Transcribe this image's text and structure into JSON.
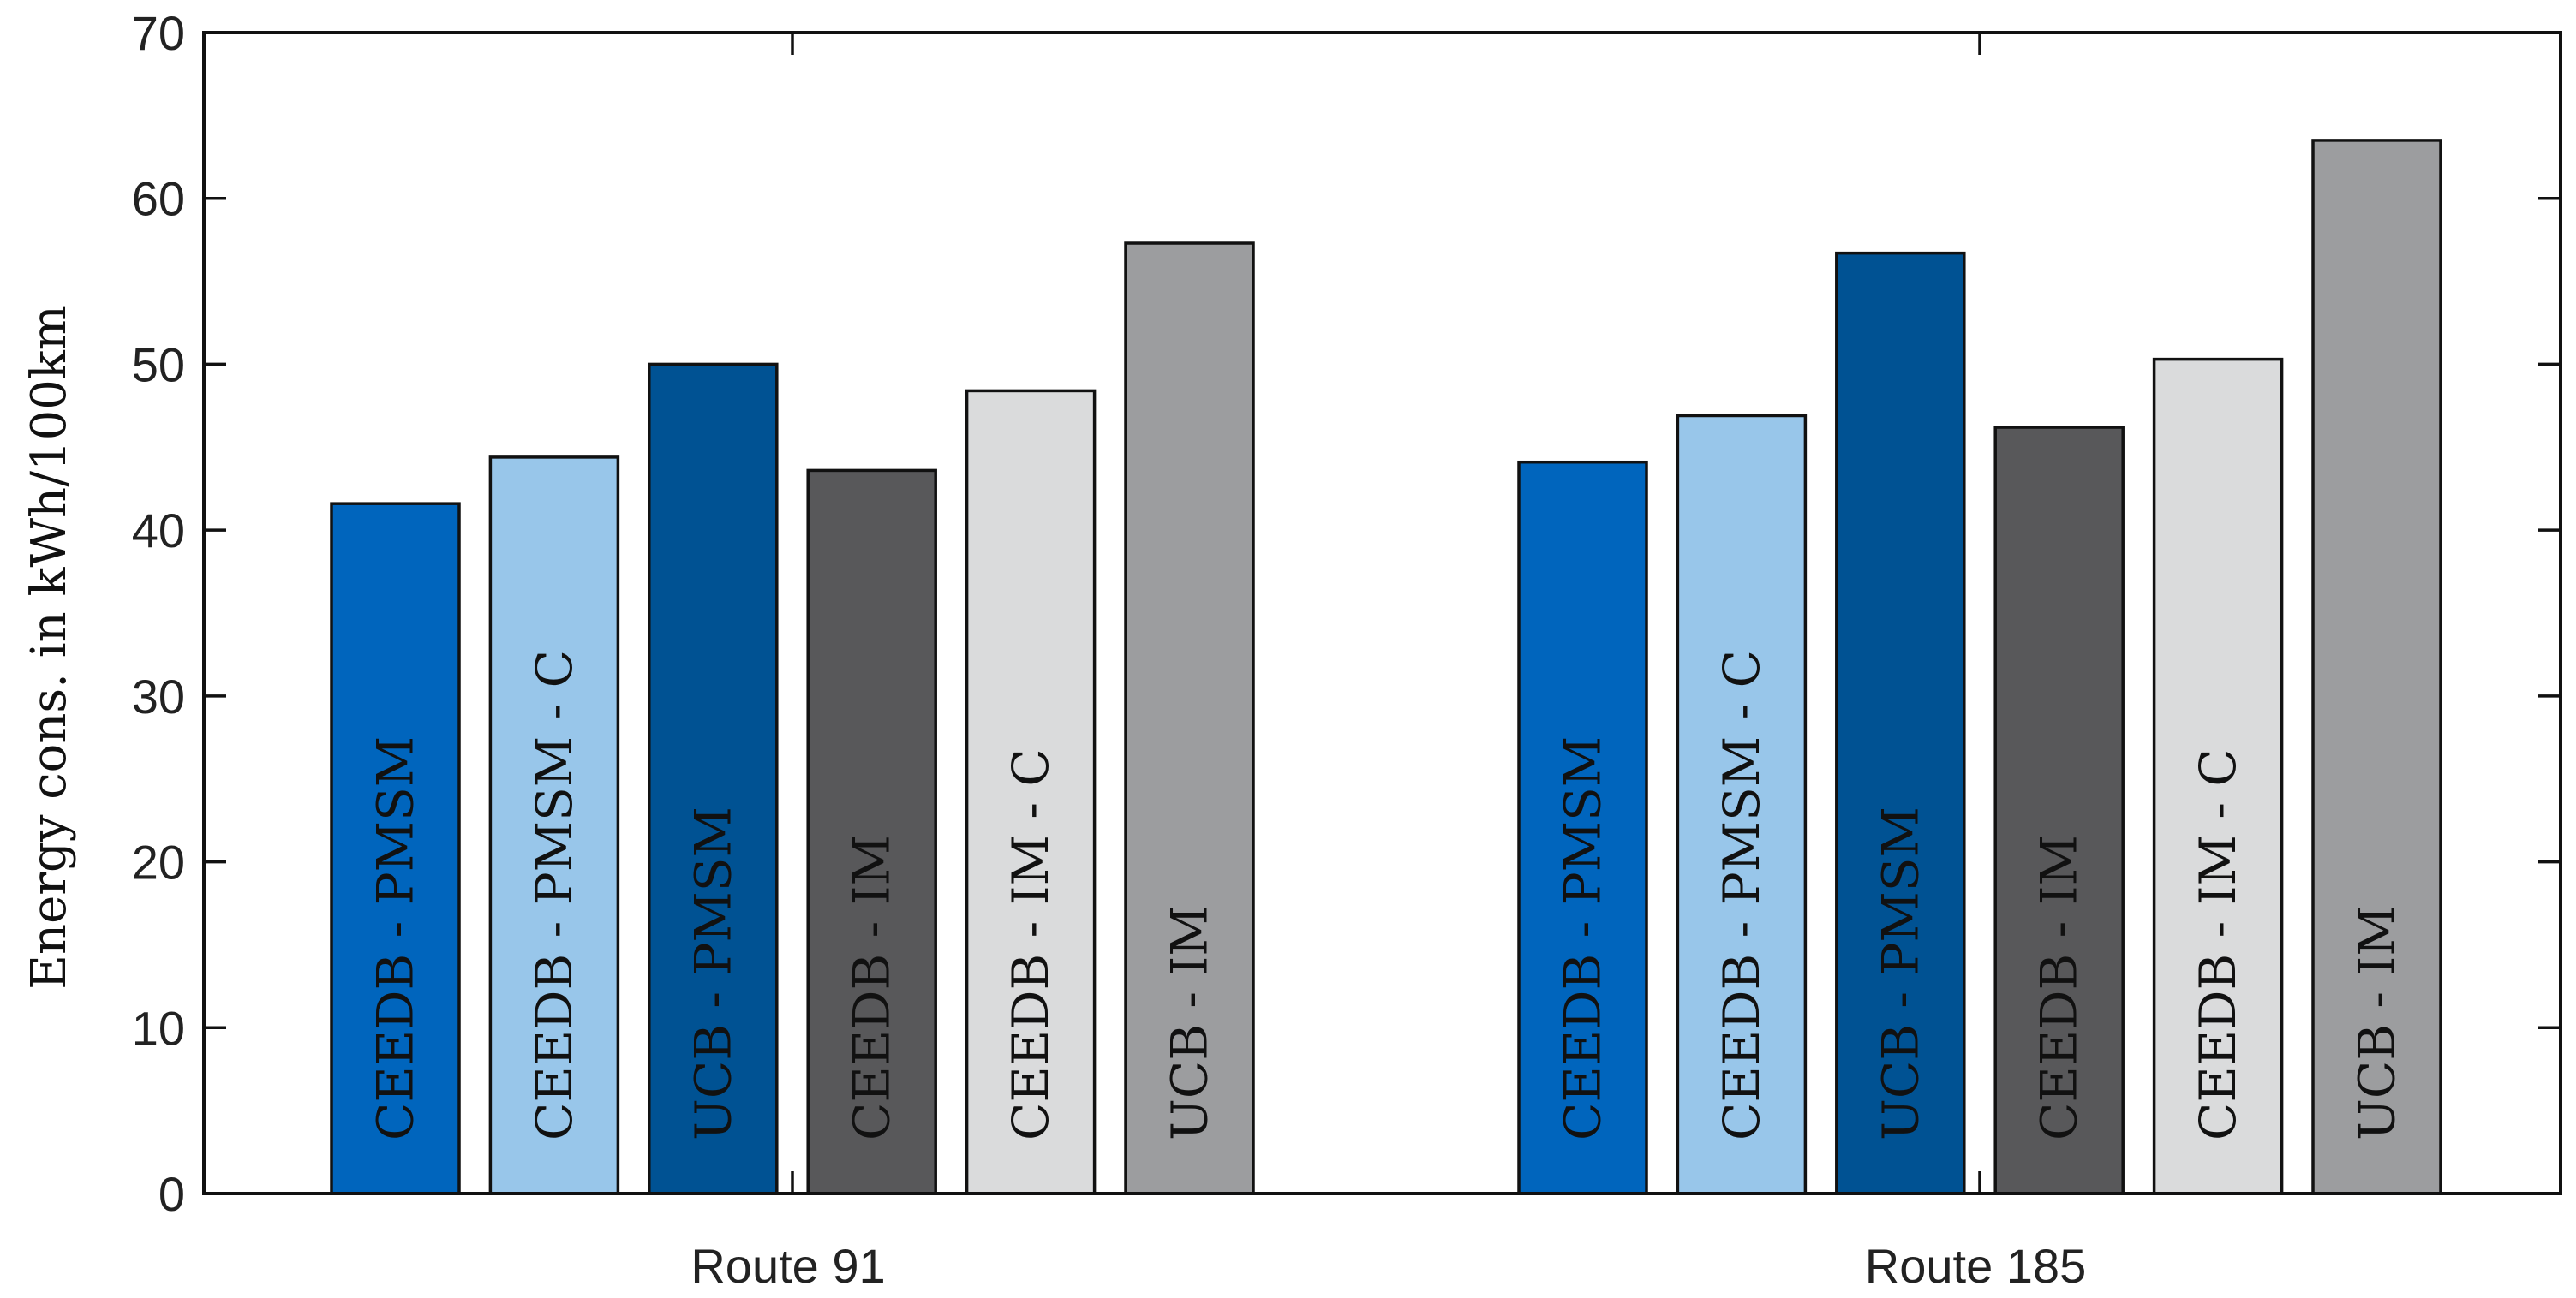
{
  "chart_data": {
    "type": "bar",
    "ylabel": "Energy cons. in kWh/100km",
    "ylim": [
      0,
      70
    ],
    "yticks": [
      0,
      10,
      20,
      30,
      40,
      50,
      60,
      70
    ],
    "grid": false,
    "categories": [
      "Route 91",
      "Route 185"
    ],
    "series": [
      {
        "name": "CEEDB - PMSM",
        "color": "#0065BD",
        "values": [
          41.6,
          44.1
        ]
      },
      {
        "name": "CEEDB - PMSM - C",
        "color": "#98C6EA",
        "values": [
          44.4,
          46.9
        ]
      },
      {
        "name": "UCB - PMSM",
        "color": "#005293",
        "values": [
          50.0,
          56.7
        ]
      },
      {
        "name": "CEEDB - IM",
        "color": "#58585A",
        "values": [
          43.6,
          46.2
        ]
      },
      {
        "name": "CEEDB - IM - C",
        "color": "#DADBDC",
        "values": [
          48.4,
          50.3
        ]
      },
      {
        "name": "UCB - IM",
        "color": "#9C9D9F",
        "values": [
          57.3,
          63.5
        ]
      }
    ]
  }
}
